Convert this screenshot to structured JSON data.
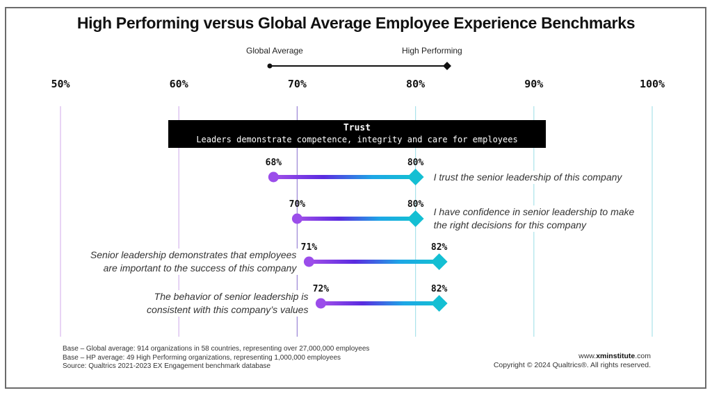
{
  "chart_data": {
    "type": "dumbbell",
    "title": "High Performing versus Global Average Employee Experience Benchmarks",
    "legend": {
      "placement": "top-center",
      "entries": [
        {
          "name": "Global Average",
          "marker": "circle",
          "color": "#9b4dea"
        },
        {
          "name": "High Performing",
          "marker": "diamond",
          "color": "#14bfd3"
        }
      ]
    },
    "x_axis": {
      "range": [
        50,
        100
      ],
      "ticks": [
        50,
        60,
        70,
        80,
        90,
        100
      ],
      "tick_labels": [
        "50%",
        "60%",
        "70%",
        "80%",
        "90%",
        "100%"
      ],
      "grid": true,
      "position": "top"
    },
    "category": {
      "title": "Trust",
      "subtitle": "Leaders demonstrate competence, integrity and care for employees"
    },
    "items": [
      {
        "label": "I trust the senior leadership of this company",
        "label_side": "right",
        "global_average": 68,
        "high_performing": 80,
        "global_label": "68%",
        "high_label": "80%"
      },
      {
        "label": "I have confidence in senior leadership to make the right decisions for this company",
        "label_lines": [
          "I have confidence in senior leadership to make",
          "the right decisions for this company"
        ],
        "label_side": "right",
        "global_average": 70,
        "high_performing": 80,
        "global_label": "70%",
        "high_label": "80%"
      },
      {
        "label": "Senior leadership demonstrates that employees are important to the success of this company",
        "label_lines": [
          "Senior leadership demonstrates that employees",
          "are important to the success of this company"
        ],
        "label_side": "left",
        "global_average": 71,
        "high_performing": 82,
        "global_label": "71%",
        "high_label": "82%"
      },
      {
        "label": "The behavior of senior leadership is consistent with this company's values",
        "label_lines": [
          "The behavior of senior leadership is",
          "consistent with this company’s values"
        ],
        "label_side": "left",
        "global_average": 72,
        "high_performing": 82,
        "global_label": "72%",
        "high_label": "82%"
      }
    ],
    "colors": {
      "global": "#9b4dea",
      "gradient_mid": "#5b2ee0",
      "high": "#14bfd3",
      "grid_left": "#d9b8ee",
      "grid_mid": "#9f86d8",
      "grid_right": "#a8e3ea"
    }
  },
  "footnotes": [
    "Base – Global average: 914 organizations in 58 countries, representing over 27,000,000 employees",
    "Base – HP average: 49 High Performing organizations,  representing 1,000,000 employees",
    "Source: Qualtrics 2021-2023 EX Engagement benchmark database"
  ],
  "credit": {
    "url_prefix": "www.",
    "url_bold": "xminstitute",
    "url_suffix": ".com",
    "copyright": "Copyright © 2024 Qualtrics®. All rights reserved."
  }
}
